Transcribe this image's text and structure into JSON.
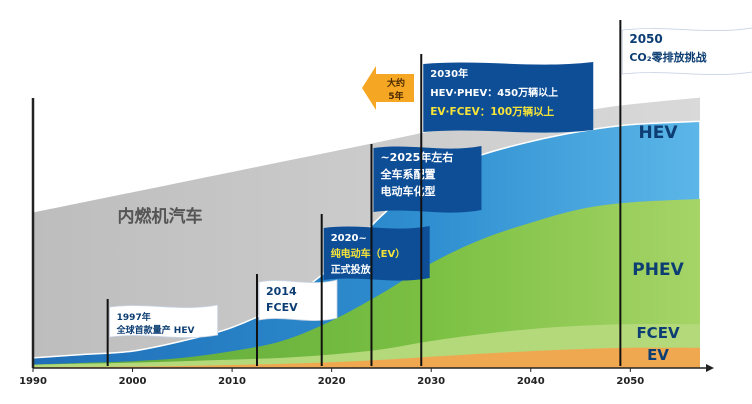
{
  "chart_data": {
    "type": "area",
    "title": "",
    "xlabel": "",
    "ylabel": "",
    "xlim": [
      1990,
      2057
    ],
    "x_ticks": [
      "1990",
      "2000",
      "2010",
      "2020",
      "2030",
      "2040",
      "2050"
    ],
    "tick_values": [
      1990,
      2000,
      2010,
      2020,
      2030,
      2040,
      2050
    ],
    "ylim": [
      0,
      100
    ],
    "x": [
      1990,
      1995,
      2000,
      2005,
      2010,
      2015,
      2020,
      2025,
      2030,
      2035,
      2040,
      2045,
      2050,
      2057
    ],
    "series": [
      {
        "name": "内燃机汽车",
        "color": "#c9c9c9",
        "top": [
          46,
          49,
          52,
          55,
          58,
          61,
          64,
          67,
          70,
          72,
          74,
          76,
          78,
          80
        ]
      },
      {
        "name": "HEV",
        "color": "#2f8fd0",
        "top": [
          3,
          4,
          5,
          8,
          12,
          19,
          30,
          45,
          57,
          63,
          67,
          70,
          72,
          73
        ]
      },
      {
        "name": "PHEV",
        "color": "#7bc043",
        "top": [
          1,
          1.5,
          2,
          3,
          5,
          8,
          14,
          22,
          31,
          38,
          43,
          47,
          49,
          50
        ]
      },
      {
        "name": "FCEV",
        "color": "#b3d97a",
        "top": [
          1,
          1.3,
          1.6,
          2,
          2.5,
          3,
          4,
          5.5,
          8,
          10,
          11.5,
          12.5,
          13,
          13
        ]
      },
      {
        "name": "EV",
        "color": "#f0a850",
        "top": [
          0.2,
          0.3,
          0.4,
          0.6,
          0.9,
          1.2,
          1.7,
          2.4,
          3.3,
          4.2,
          5,
          5.6,
          6,
          6
        ]
      }
    ],
    "series_labels": {
      "ice": "内燃机汽车",
      "hev": "HEV",
      "phev": "PHEV",
      "fcev": "FCEV",
      "ev": "EV"
    },
    "milestones": [
      {
        "year": 1997.5,
        "lines": [
          "1997年",
          "全球首款量产 HEV"
        ],
        "style": "white"
      },
      {
        "year": 2012.5,
        "lines": [
          "2014",
          "FCEV"
        ],
        "style": "white"
      },
      {
        "year": 2019,
        "lines": [
          "2020~",
          "纯电动车（EV）",
          "正式投放"
        ],
        "style": "blue"
      },
      {
        "year": 2024,
        "lines": [
          "~2025年左右",
          "全车系配置",
          "电动车化型"
        ],
        "style": "blue"
      },
      {
        "year": 2029,
        "lines": [
          "2030年",
          "HEV·PHEV：450万辆以上",
          "EV·FCEV：100万辆以上"
        ],
        "style": "blue"
      },
      {
        "year": 2049,
        "lines": [
          "2050",
          "CO₂零排放挑战"
        ],
        "style": "white"
      }
    ],
    "arrow_label": [
      "大约",
      "5年"
    ],
    "colors": {
      "accent_blue": "#0d4e97",
      "flag_yellow": "#f5e33a",
      "arrow_orange": "#f5a623"
    }
  }
}
